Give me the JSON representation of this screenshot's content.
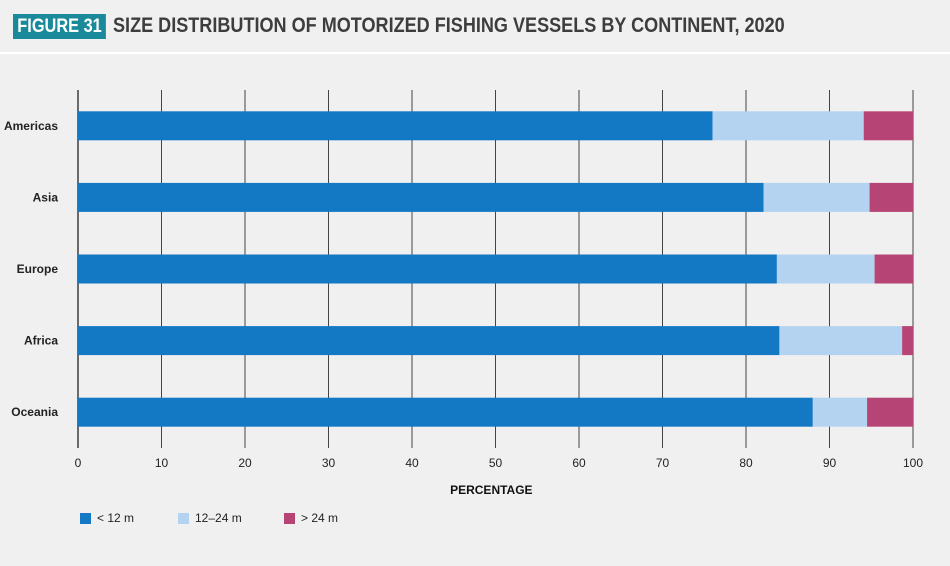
{
  "header": {
    "badge": "FIGURE 31",
    "title": "SIZE DISTRIBUTION OF MOTORIZED FISHING VESSELS BY CONTINENT, 2020"
  },
  "chart_data": {
    "type": "bar",
    "orientation": "horizontal",
    "stacked": true,
    "categories": [
      "Americas",
      "Asia",
      "Europe",
      "Africa",
      "Oceania"
    ],
    "series": [
      {
        "name": "< 12 m",
        "color": "#1479c4",
        "values": [
          76,
          82.1,
          83.7,
          84,
          88
        ]
      },
      {
        "name": "12–24 m",
        "color": "#b3d3f0",
        "values": [
          18.1,
          12.7,
          11.7,
          14.7,
          6.5
        ]
      },
      {
        "name": "> 24 m",
        "color": "#b64474",
        "values": [
          5.9,
          5.2,
          4.6,
          1.3,
          5.5
        ]
      }
    ],
    "xlabel": "PERCENTAGE",
    "xlim": [
      0,
      100
    ],
    "xticks": [
      0,
      10,
      20,
      30,
      40,
      50,
      60,
      70,
      80,
      90,
      100
    ],
    "grid": "vertical",
    "legend_position": "bottom-left"
  }
}
